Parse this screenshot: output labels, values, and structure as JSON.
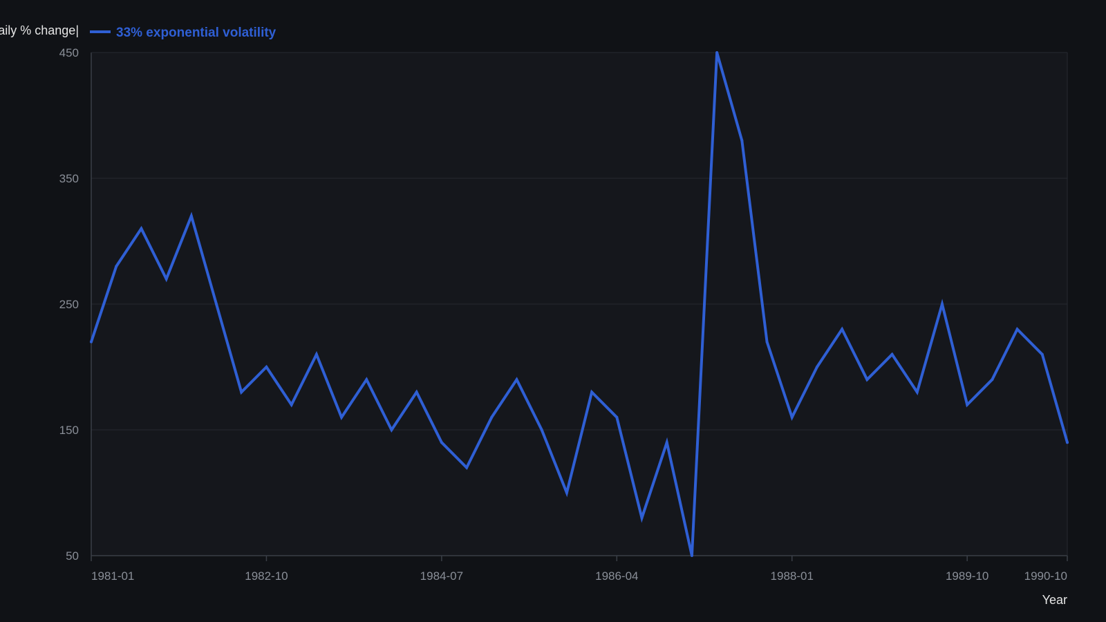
{
  "chart_data": {
    "type": "line",
    "title": "",
    "xlabel": "Year",
    "ylabel": "|daily % change|",
    "ylim": [
      50,
      450
    ],
    "yticks": [
      50,
      150,
      250,
      350,
      450
    ],
    "xlim": [
      "1981-01",
      "1990-10"
    ],
    "xticks": [
      "1981-01",
      "1982-10",
      "1984-07",
      "1986-04",
      "1988-01",
      "1989-10",
      "1990-10"
    ],
    "grid": true,
    "legend": "top-left",
    "colors": {
      "background": "#101216",
      "plot_background": "#15171c",
      "grid": "#262a31",
      "axis": "#3a3f47",
      "series": "#2f5fd4"
    },
    "x": [
      "1981-01",
      "1981-04",
      "1981-07",
      "1981-10",
      "1982-01",
      "1982-04",
      "1982-07",
      "1982-10",
      "1983-01",
      "1983-04",
      "1983-07",
      "1983-10",
      "1984-01",
      "1984-04",
      "1984-07",
      "1984-10",
      "1985-01",
      "1985-04",
      "1985-07",
      "1985-10",
      "1986-01",
      "1986-04",
      "1986-07",
      "1986-10",
      "1987-01",
      "1987-04",
      "1987-07",
      "1987-10",
      "1988-01",
      "1988-04",
      "1988-07",
      "1988-10",
      "1989-01",
      "1989-04",
      "1989-07",
      "1989-10",
      "1990-01",
      "1990-04",
      "1990-07",
      "1990-10"
    ],
    "series": [
      {
        "name": "33% exponential volatility",
        "values": [
          220,
          280,
          310,
          270,
          320,
          250,
          180,
          200,
          170,
          210,
          160,
          190,
          150,
          180,
          140,
          120,
          160,
          190,
          150,
          100,
          180,
          160,
          80,
          140,
          50,
          450,
          380,
          220,
          160,
          200,
          230,
          190,
          210,
          180,
          250,
          170,
          190,
          230,
          210,
          140
        ]
      }
    ]
  }
}
